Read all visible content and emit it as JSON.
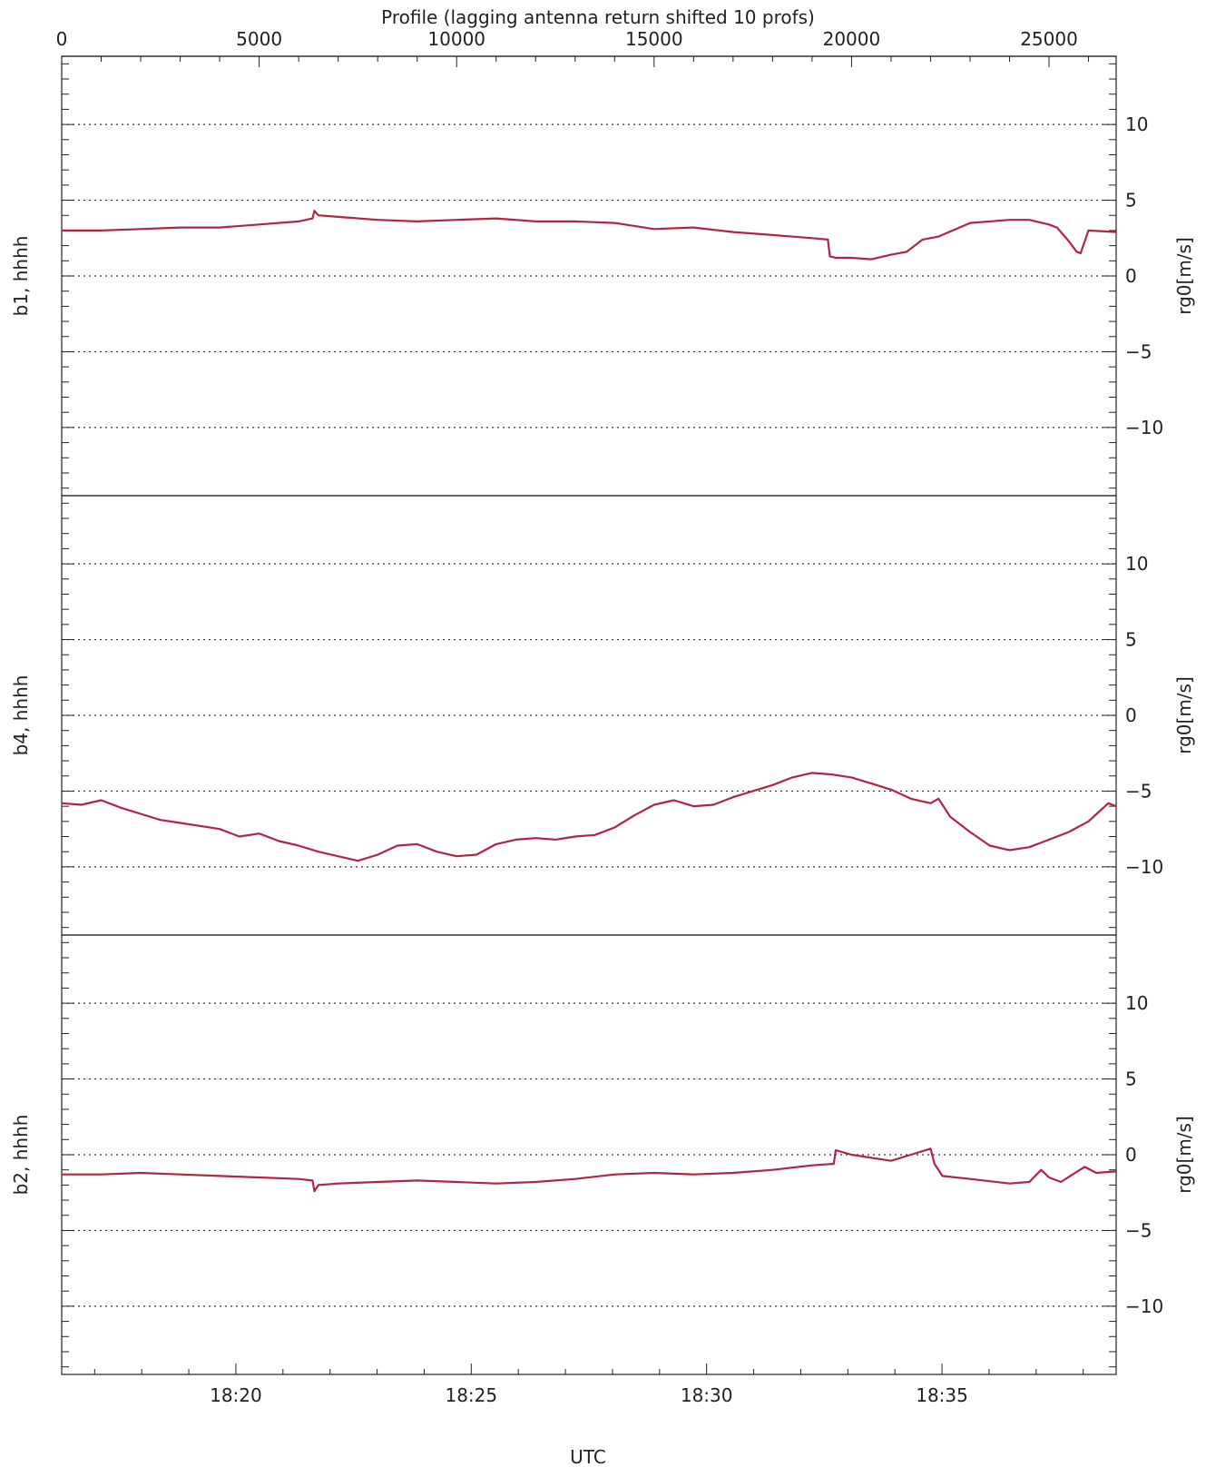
{
  "chart_data": {
    "type": "line",
    "top_axis": {
      "label": "Profile (lagging antenna return shifted 10 profs)",
      "range": [
        0,
        26700
      ],
      "major_ticks": [
        0,
        5000,
        10000,
        15000,
        20000,
        25000
      ],
      "tick_labels": [
        "0",
        "5000",
        "10000",
        "15000",
        "20000",
        "25000"
      ]
    },
    "bottom_axis": {
      "label": "UTC",
      "range_minutes": [
        1096.3,
        1118.7
      ],
      "major_ticks_minutes": [
        1100,
        1105,
        1110,
        1115
      ],
      "tick_labels": [
        "18:20",
        "18:25",
        "18:30",
        "18:35"
      ]
    },
    "line_color": "#b0263f",
    "grid": "dotted horizontal at ±10, ±5, 0",
    "panels": [
      {
        "name": "b1, hhhh",
        "ylabel": "rg0[m/s]",
        "ylim": [
          -14.5,
          14.5
        ],
        "yticks": [
          10,
          5,
          0,
          -5,
          -10
        ],
        "ytick_labels": [
          "10",
          "5",
          "0",
          "−5",
          "−10"
        ],
        "series": {
          "x_profile": [
            0,
            1000,
            2000,
            3000,
            4000,
            5000,
            6000,
            6350,
            6400,
            6500,
            7000,
            8000,
            9000,
            10000,
            11000,
            12000,
            13000,
            14000,
            15000,
            16000,
            17000,
            18000,
            19000,
            19400,
            19450,
            19600,
            20000,
            20500,
            21000,
            21400,
            21800,
            22200,
            23000,
            24000,
            24500,
            25000,
            25200,
            25500,
            25700,
            25800,
            26000,
            26700
          ],
          "y": [
            3.0,
            3.0,
            3.1,
            3.2,
            3.2,
            3.4,
            3.6,
            3.8,
            4.3,
            4.0,
            3.9,
            3.7,
            3.6,
            3.7,
            3.8,
            3.6,
            3.6,
            3.5,
            3.1,
            3.2,
            2.9,
            2.7,
            2.5,
            2.4,
            1.3,
            1.2,
            1.2,
            1.1,
            1.4,
            1.6,
            2.4,
            2.6,
            3.5,
            3.7,
            3.7,
            3.4,
            3.2,
            2.3,
            1.6,
            1.5,
            3.0,
            2.9
          ]
        }
      },
      {
        "name": "b4, hhhh",
        "ylabel": "rg0[m/s]",
        "ylim": [
          -14.5,
          14.5
        ],
        "yticks": [
          10,
          5,
          0,
          -5,
          -10
        ],
        "ytick_labels": [
          "10",
          "5",
          "0",
          "−5",
          "−10"
        ],
        "series": {
          "x_profile": [
            0,
            500,
            1000,
            1500,
            2000,
            2500,
            3000,
            3500,
            4000,
            4500,
            5000,
            5500,
            6000,
            6500,
            7000,
            7500,
            8000,
            8500,
            9000,
            9500,
            10000,
            10500,
            11000,
            11500,
            12000,
            12500,
            13000,
            13500,
            14000,
            14500,
            15000,
            15500,
            16000,
            16500,
            17000,
            17500,
            18000,
            18500,
            19000,
            19500,
            20000,
            20500,
            21000,
            21500,
            22000,
            22200,
            22500,
            23000,
            23500,
            24000,
            24500,
            25000,
            25500,
            26000,
            26500,
            26700
          ],
          "y": [
            -5.8,
            -5.9,
            -5.6,
            -6.1,
            -6.5,
            -6.9,
            -7.1,
            -7.3,
            -7.5,
            -8.0,
            -7.8,
            -8.3,
            -8.6,
            -9.0,
            -9.3,
            -9.6,
            -9.2,
            -8.6,
            -8.5,
            -9.0,
            -9.3,
            -9.2,
            -8.5,
            -8.2,
            -8.1,
            -8.2,
            -8.0,
            -7.9,
            -7.4,
            -6.6,
            -5.9,
            -5.6,
            -6.0,
            -5.9,
            -5.4,
            -5.0,
            -4.6,
            -4.1,
            -3.8,
            -3.9,
            -4.1,
            -4.5,
            -4.9,
            -5.5,
            -5.8,
            -5.5,
            -6.7,
            -7.7,
            -8.6,
            -8.9,
            -8.7,
            -8.2,
            -7.7,
            -7.0,
            -5.8,
            -6.0
          ]
        }
      },
      {
        "name": "b2, hhhh",
        "ylabel": "rg0[m/s]",
        "ylim": [
          -14.5,
          14.5
        ],
        "yticks": [
          10,
          5,
          0,
          -5,
          -10
        ],
        "ytick_labels": [
          "10",
          "5",
          "0",
          "−5",
          "−10"
        ],
        "series": {
          "x_profile": [
            0,
            1000,
            2000,
            3000,
            4000,
            5000,
            6000,
            6350,
            6400,
            6500,
            7000,
            8000,
            9000,
            10000,
            11000,
            12000,
            13000,
            14000,
            15000,
            16000,
            17000,
            18000,
            19000,
            19550,
            19600,
            20000,
            21000,
            21500,
            22000,
            22100,
            22300,
            23000,
            24000,
            24500,
            24800,
            25000,
            25300,
            25600,
            25900,
            26200,
            26700
          ],
          "y": [
            -1.3,
            -1.3,
            -1.2,
            -1.3,
            -1.4,
            -1.5,
            -1.6,
            -1.7,
            -2.4,
            -2.0,
            -1.9,
            -1.8,
            -1.7,
            -1.8,
            -1.9,
            -1.8,
            -1.6,
            -1.3,
            -1.2,
            -1.3,
            -1.2,
            -1.0,
            -0.7,
            -0.6,
            0.3,
            0.0,
            -0.4,
            0.0,
            0.4,
            -0.6,
            -1.4,
            -1.6,
            -1.9,
            -1.8,
            -1.0,
            -1.5,
            -1.8,
            -1.3,
            -0.8,
            -1.2,
            -1.1
          ]
        }
      }
    ]
  }
}
